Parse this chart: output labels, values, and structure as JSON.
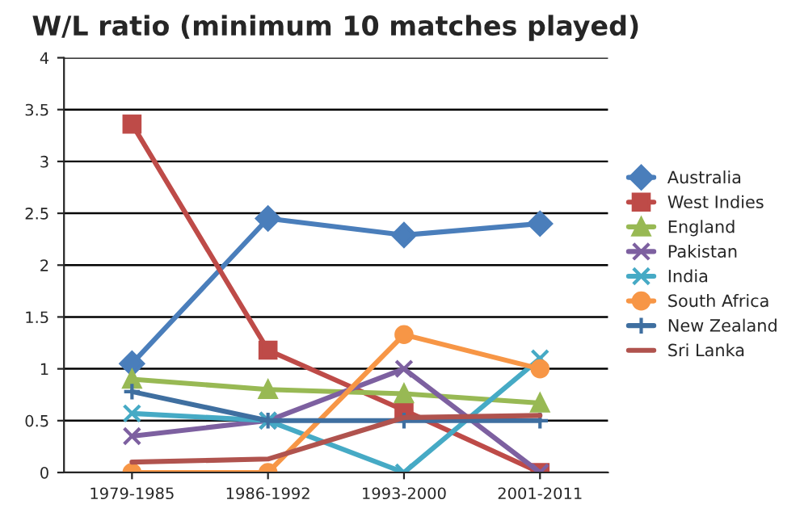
{
  "chart_data": {
    "type": "line",
    "title": "W/L ratio (minimum 10 matches played)",
    "categories": [
      "1979-1985",
      "1986-1992",
      "1993-2000",
      "2001-2011"
    ],
    "series": [
      {
        "name": "Australia",
        "color": "#4a7ebb",
        "marker": "diamond",
        "values": [
          1.05,
          2.45,
          2.29,
          2.4
        ]
      },
      {
        "name": "West Indies",
        "color": "#be4b48",
        "marker": "square",
        "values": [
          3.36,
          1.18,
          0.6,
          0
        ]
      },
      {
        "name": "England",
        "color": "#98b954",
        "marker": "triangle",
        "values": [
          0.9,
          0.8,
          0.76,
          0.67
        ]
      },
      {
        "name": "Pakistan",
        "color": "#7d60a0",
        "marker": "cross",
        "values": [
          0.35,
          0.5,
          1.0,
          0
        ]
      },
      {
        "name": "India",
        "color": "#46aac5",
        "marker": "cross",
        "values": [
          0.57,
          0.5,
          0,
          1.1
        ]
      },
      {
        "name": "South Africa",
        "color": "#f79646",
        "marker": "circle",
        "values": [
          0,
          0,
          1.33,
          1.0
        ]
      },
      {
        "name": "New Zealand",
        "color": "#3f6fa0",
        "marker": "plus",
        "values": [
          0.78,
          0.5,
          0.5,
          0.5
        ]
      },
      {
        "name": "Sri Lanka",
        "color": "#b0534e",
        "marker": "none",
        "values": [
          0.1,
          0.13,
          0.53,
          0.55
        ]
      }
    ],
    "ylim": [
      0,
      4
    ],
    "yticks": [
      0,
      0.5,
      1,
      1.5,
      2,
      2.5,
      3,
      3.5,
      4
    ],
    "grid": "y",
    "legend": "right"
  }
}
